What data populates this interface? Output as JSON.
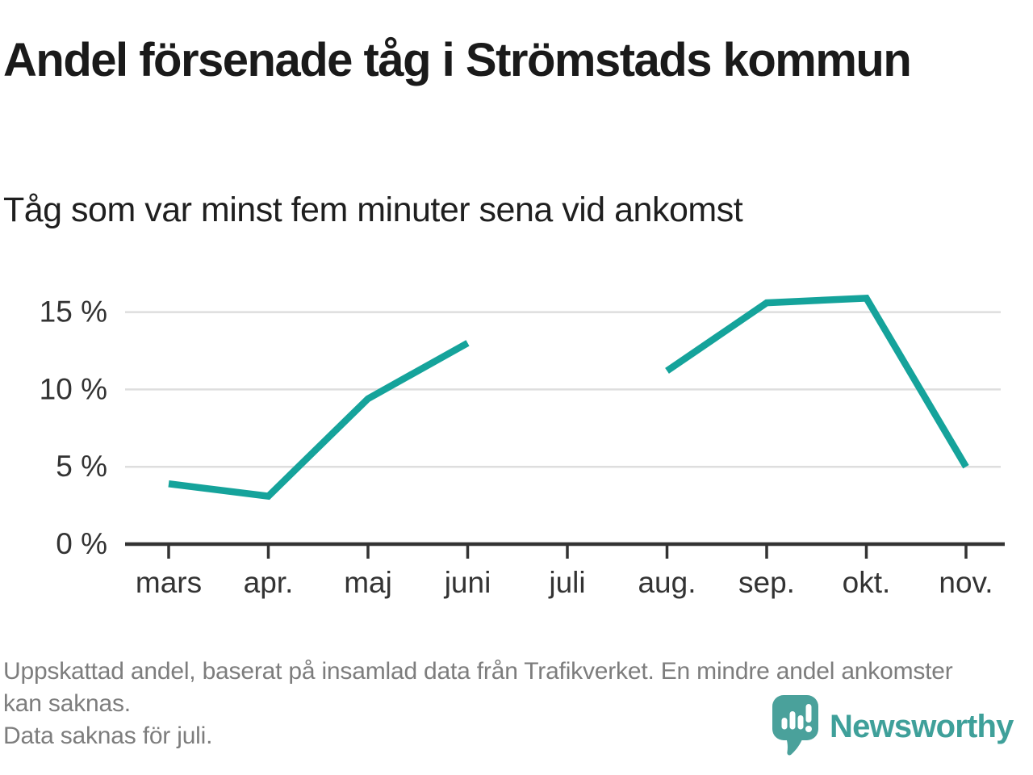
{
  "header": {
    "title": "Andel försenade tåg i Strömstads kommun",
    "subtitle": "Tåg som var minst fem minuter sena vid ankomst"
  },
  "chart_data": {
    "type": "line",
    "title": "Andel försenade tåg i Strömstads kommun",
    "subtitle": "Tåg som var minst fem minuter sena vid ankomst",
    "categories": [
      "mars",
      "apr.",
      "maj",
      "juni",
      "juli",
      "aug.",
      "sep.",
      "okt.",
      "nov."
    ],
    "series": [
      {
        "name": "Andel försenade tåg",
        "values": [
          3.9,
          3.1,
          9.4,
          13.0,
          null,
          11.2,
          15.6,
          15.9,
          5.0
        ]
      }
    ],
    "unit": "%",
    "y_ticks": [
      0,
      5,
      10,
      15
    ],
    "y_tick_labels": [
      "0 %",
      "5 %",
      "10 %",
      "15 %"
    ],
    "ylim": [
      0,
      17.8
    ],
    "grid": "horizontal",
    "legend": "none",
    "missing_data": [
      "juli"
    ],
    "line_color": "#15a39b",
    "axis_color": "#333333",
    "gridline_color": "#dedede",
    "tick_label_color": "#333333"
  },
  "footer": {
    "note1": "Uppskattad andel, baserat på insamlad data från Trafikverket. En mindre andel ankomster kan saknas.",
    "note2": "Data saknas för juli."
  },
  "branding": {
    "name": "Newsworthy",
    "icon": "newsworthy-speech-bubble-bar-chart-icon",
    "color": "#3fa09a",
    "icon_color": "#4aa19b"
  }
}
